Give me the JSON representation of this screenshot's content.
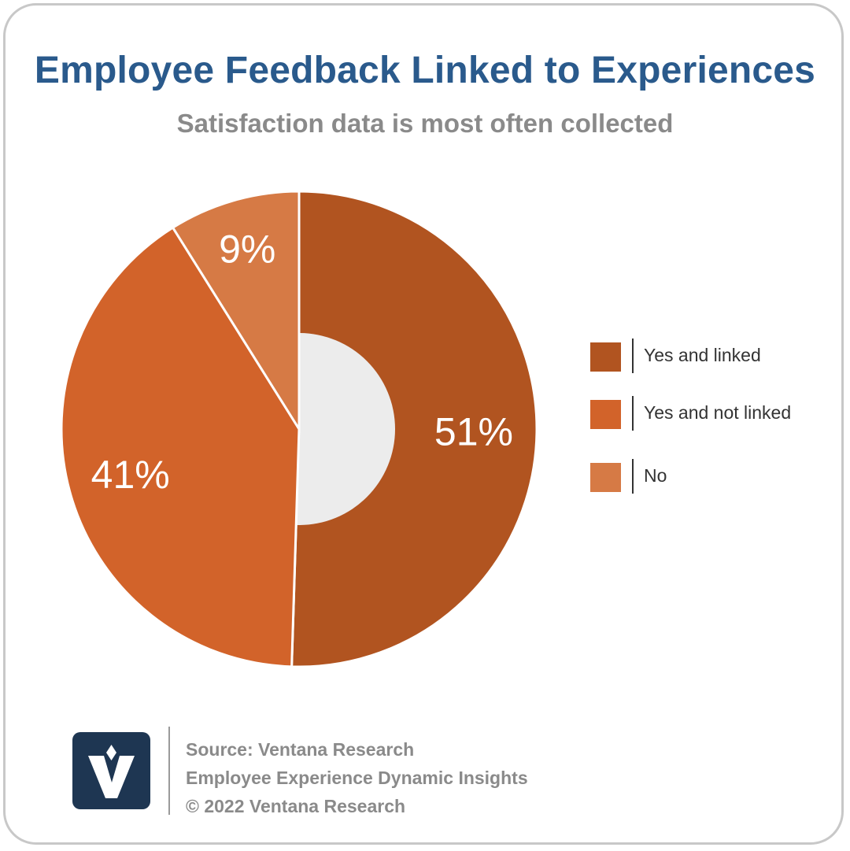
{
  "header": {
    "title": "Employee Feedback Linked to Experiences",
    "subtitle": "Satisfaction data is most often collected"
  },
  "chart_data": {
    "type": "pie",
    "style": "donut",
    "title": "Employee Feedback Linked to Experiences",
    "subtitle": "Satisfaction data is most often collected",
    "categories": [
      "Yes and linked",
      "Yes and not linked",
      "No"
    ],
    "values": [
      51,
      41,
      9
    ],
    "labels": [
      "51%",
      "41%",
      "9%"
    ],
    "colors": [
      "#b15420",
      "#d2632a",
      "#d67a45"
    ],
    "legend_position": "right",
    "start_angle": "12 o'clock, clockwise"
  },
  "legend": {
    "items": [
      {
        "label": "Yes and linked",
        "color": "#b15420"
      },
      {
        "label": "Yes and not linked",
        "color": "#d2632a"
      },
      {
        "label": "No",
        "color": "#d67a45"
      }
    ]
  },
  "footer": {
    "logo_icon": "ventana-v-logo-icon",
    "source": "Source: Ventana Research",
    "study": "Employee Experience Dynamic Insights",
    "copyright": "© 2022 Ventana Research",
    "logo_color": "#1e3652"
  },
  "theme": {
    "title_color": "#2a5a8c",
    "subtitle_color": "#8a8a8a",
    "donut_hole_color": "#ececec"
  }
}
